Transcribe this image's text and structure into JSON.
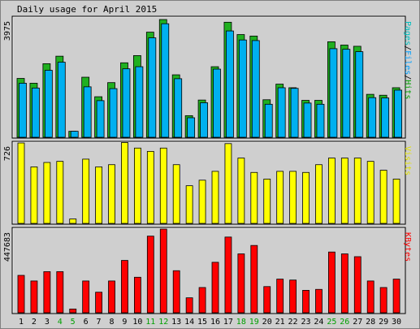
{
  "chart_data": {
    "type": "bar",
    "title": "Daily usage for April 2015",
    "categories": [
      "1",
      "2",
      "3",
      "4",
      "5",
      "6",
      "7",
      "8",
      "9",
      "10",
      "11",
      "12",
      "13",
      "14",
      "15",
      "16",
      "17",
      "18",
      "19",
      "20",
      "21",
      "22",
      "23",
      "24",
      "25",
      "26",
      "27",
      "28",
      "29",
      "30"
    ],
    "weekend_days": [
      "4",
      "5",
      "11",
      "12",
      "18",
      "19",
      "25",
      "26"
    ],
    "panels": {
      "top": {
        "max_label": "3975",
        "axis_max": 3975,
        "labels": [
          {
            "text": "Pages",
            "color": "#00c0c0"
          },
          {
            "text": "Files",
            "color": "#00a0ff"
          },
          {
            "text": "Hits",
            "color": "#00a000"
          }
        ],
        "series": [
          {
            "name": "Hits",
            "color": "#20b020",
            "values": [
              1960,
              1800,
              2450,
              2700,
              200,
              2000,
              1350,
              1820,
              2480,
              2720,
              3500,
              3920,
              2080,
              720,
              1240,
              2350,
              3830,
              3420,
              3370,
              1250,
              1770,
              1650,
              1230,
              1230,
              3180,
              3070,
              3030,
              1430,
              1400,
              1650
            ]
          },
          {
            "name": "Files",
            "color": "#00b0f0",
            "values": [
              1800,
              1640,
              2230,
              2500,
              200,
              1680,
              1220,
              1620,
              2280,
              2350,
              3310,
              3780,
              1950,
              650,
              1150,
              2270,
              3540,
              3240,
              3220,
              1100,
              1650,
              1630,
              1140,
              1100,
              2950,
              2930,
              2850,
              1320,
              1310,
              1570
            ]
          }
        ]
      },
      "middle": {
        "max_label": "726",
        "axis_max": 726,
        "label": "Visits",
        "label_color": "#e0e000",
        "series": [
          {
            "name": "Visits",
            "color": "#ffff00",
            "values": [
              726,
              510,
              550,
              560,
              40,
              580,
              510,
              530,
              730,
              680,
              650,
              680,
              530,
              340,
              390,
              470,
              720,
              590,
              460,
              400,
              470,
              470,
              460,
              530,
              590,
              590,
              590,
              560,
              480,
              400
            ]
          }
        ]
      },
      "bottom": {
        "max_label": "447683",
        "axis_max": 447683,
        "label": "KBytes",
        "label_color": "#ff0000",
        "series": [
          {
            "name": "KBytes",
            "color": "#ff0000",
            "values": [
              200000,
              170000,
              220000,
              220000,
              20000,
              170000,
              110000,
              170000,
              280000,
              190000,
              410000,
              447683,
              225000,
              80000,
              135000,
              270000,
              405000,
              315000,
              360000,
              140000,
              180000,
              175000,
              120000,
              125000,
              325000,
              315000,
              300000,
              170000,
              135000,
              180000
            ]
          }
        ]
      }
    }
  }
}
